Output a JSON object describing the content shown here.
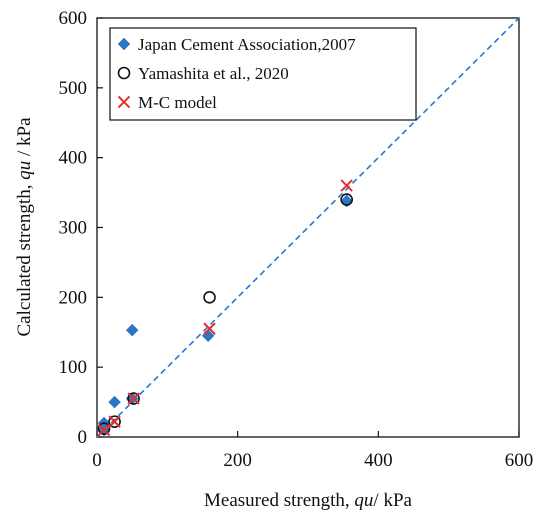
{
  "chart_data": {
    "type": "scatter",
    "xlabel": "Measured strength, ",
    "xlabel_symbol": "qu",
    "xlabel_unit": "/ kPa",
    "ylabel": "Calculated strength, ",
    "ylabel_symbol": "qu",
    "ylabel_unit": " / kPa",
    "xlim": [
      0,
      600
    ],
    "ylim": [
      0,
      600
    ],
    "xticks": [
      0,
      200,
      400,
      600
    ],
    "yticks": [
      0,
      100,
      200,
      300,
      400,
      500,
      600
    ],
    "grid": false,
    "legend_position": "top-left",
    "series": [
      {
        "name": "Japan Cement Association,2007",
        "marker": "diamond",
        "color": "#2e75c9",
        "points": [
          [
            10,
            20
          ],
          [
            10,
            10
          ],
          [
            25,
            50
          ],
          [
            50,
            153
          ],
          [
            50,
            55
          ],
          [
            158,
            145
          ],
          [
            355,
            338
          ]
        ]
      },
      {
        "name": "Yamashita et al., 2020",
        "marker": "circle-open",
        "color": "#111111",
        "points": [
          [
            10,
            12
          ],
          [
            25,
            22
          ],
          [
            52,
            55
          ],
          [
            160,
            200
          ],
          [
            355,
            340
          ]
        ]
      },
      {
        "name": "M-C model",
        "marker": "x",
        "color": "#e03030",
        "points": [
          [
            10,
            10
          ],
          [
            25,
            22
          ],
          [
            52,
            55
          ],
          [
            160,
            155
          ],
          [
            355,
            360
          ]
        ]
      }
    ],
    "reference_line": {
      "type": "y=x",
      "style": "dashed",
      "color": "#2e75c9"
    }
  }
}
